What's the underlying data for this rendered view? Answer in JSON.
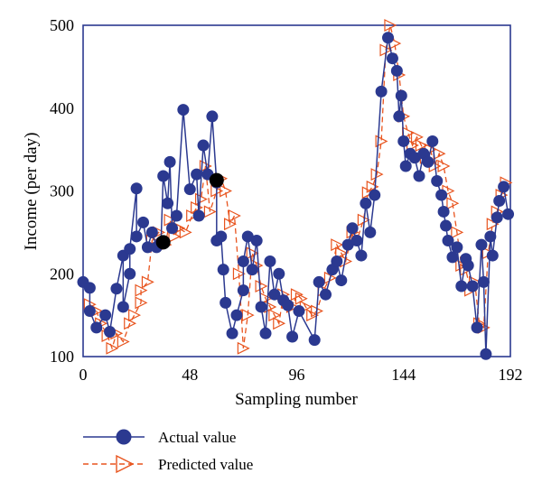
{
  "chart_data": {
    "type": "line",
    "xlabel": "Sampling number",
    "ylabel": "Income (per day)",
    "xlim": [
      0,
      192
    ],
    "ylim": [
      100,
      500
    ],
    "x_ticks": [
      0,
      48,
      96,
      144,
      192
    ],
    "y_ticks": [
      100,
      200,
      300,
      400,
      500
    ],
    "grid": false,
    "legend_position": "bottom-left",
    "series": [
      {
        "name": "Actual value",
        "color": "#2b3990",
        "marker": "circle",
        "line_style": "solid",
        "points": [
          [
            0,
            190
          ],
          [
            3,
            183
          ],
          [
            3,
            155
          ],
          [
            6,
            135
          ],
          [
            10,
            150
          ],
          [
            12,
            130
          ],
          [
            15,
            182
          ],
          [
            18,
            222
          ],
          [
            18,
            160
          ],
          [
            21,
            200
          ],
          [
            21,
            230
          ],
          [
            24,
            303
          ],
          [
            24,
            245
          ],
          [
            27,
            262
          ],
          [
            29,
            232
          ],
          [
            31,
            250
          ],
          [
            33,
            232
          ],
          [
            35,
            238
          ],
          [
            36,
            318
          ],
          [
            38,
            285
          ],
          [
            39,
            335
          ],
          [
            40,
            255
          ],
          [
            42,
            270
          ],
          [
            45,
            398
          ],
          [
            48,
            302
          ],
          [
            51,
            320
          ],
          [
            52,
            270
          ],
          [
            54,
            355
          ],
          [
            56,
            320
          ],
          [
            58,
            390
          ],
          [
            60,
            310
          ],
          [
            60,
            240
          ],
          [
            62,
            245
          ],
          [
            63,
            205
          ],
          [
            64,
            165
          ],
          [
            67,
            128
          ],
          [
            69,
            150
          ],
          [
            72,
            180
          ],
          [
            72,
            215
          ],
          [
            74,
            245
          ],
          [
            76,
            205
          ],
          [
            78,
            240
          ],
          [
            80,
            160
          ],
          [
            82,
            128
          ],
          [
            84,
            215
          ],
          [
            86,
            175
          ],
          [
            88,
            200
          ],
          [
            90,
            168
          ],
          [
            92,
            162
          ],
          [
            94,
            124
          ],
          [
            97,
            155
          ],
          [
            104,
            120
          ],
          [
            106,
            190
          ],
          [
            109,
            175
          ],
          [
            112,
            205
          ],
          [
            114,
            215
          ],
          [
            116,
            192
          ],
          [
            119,
            235
          ],
          [
            121,
            255
          ],
          [
            123,
            240
          ],
          [
            125,
            222
          ],
          [
            127,
            285
          ],
          [
            129,
            250
          ],
          [
            131,
            295
          ],
          [
            134,
            420
          ],
          [
            137,
            485
          ],
          [
            139,
            460
          ],
          [
            141,
            445
          ],
          [
            142,
            390
          ],
          [
            143,
            415
          ],
          [
            144,
            360
          ],
          [
            145,
            330
          ],
          [
            147,
            345
          ],
          [
            149,
            340
          ],
          [
            151,
            318
          ],
          [
            153,
            345
          ],
          [
            155,
            335
          ],
          [
            157,
            360
          ],
          [
            159,
            312
          ],
          [
            161,
            295
          ],
          [
            162,
            275
          ],
          [
            163,
            258
          ],
          [
            164,
            240
          ],
          [
            166,
            220
          ],
          [
            168,
            232
          ],
          [
            170,
            185
          ],
          [
            172,
            218
          ],
          [
            173,
            210
          ],
          [
            175,
            185
          ],
          [
            177,
            135
          ],
          [
            179,
            235
          ],
          [
            180,
            190
          ],
          [
            181,
            103
          ],
          [
            183,
            245
          ],
          [
            184,
            222
          ],
          [
            186,
            268
          ],
          [
            187,
            288
          ],
          [
            189,
            305
          ],
          [
            191,
            272
          ]
        ]
      },
      {
        "name": "Predicted value",
        "color": "#e8541e",
        "marker": "triangle-right",
        "line_style": "dashed",
        "points": [
          [
            3,
            163
          ],
          [
            6,
            155
          ],
          [
            8,
            140
          ],
          [
            11,
            125
          ],
          [
            13,
            110
          ],
          [
            15,
            128
          ],
          [
            18,
            118
          ],
          [
            21,
            140
          ],
          [
            23,
            150
          ],
          [
            26,
            165
          ],
          [
            26,
            180
          ],
          [
            29,
            190
          ],
          [
            31,
            240
          ],
          [
            34,
            250
          ],
          [
            37,
            235
          ],
          [
            39,
            265
          ],
          [
            41,
            245
          ],
          [
            43,
            255
          ],
          [
            46,
            250
          ],
          [
            49,
            270
          ],
          [
            51,
            280
          ],
          [
            53,
            290
          ],
          [
            55,
            330
          ],
          [
            57,
            275
          ],
          [
            60,
            300
          ],
          [
            62,
            315
          ],
          [
            64,
            300
          ],
          [
            66,
            260
          ],
          [
            68,
            270
          ],
          [
            70,
            200
          ],
          [
            72,
            110
          ],
          [
            74,
            150
          ],
          [
            76,
            225
          ],
          [
            78,
            210
          ],
          [
            80,
            185
          ],
          [
            82,
            170
          ],
          [
            84,
            160
          ],
          [
            86,
            150
          ],
          [
            88,
            140
          ],
          [
            90,
            175
          ],
          [
            92,
            165
          ],
          [
            94,
            160
          ],
          [
            96,
            175
          ],
          [
            98,
            170
          ],
          [
            100,
            160
          ],
          [
            103,
            150
          ],
          [
            105,
            155
          ],
          [
            108,
            180
          ],
          [
            111,
            195
          ],
          [
            114,
            235
          ],
          [
            116,
            225
          ],
          [
            118,
            215
          ],
          [
            121,
            250
          ],
          [
            123,
            240
          ],
          [
            126,
            265
          ],
          [
            128,
            298
          ],
          [
            130,
            305
          ],
          [
            132,
            320
          ],
          [
            134,
            360
          ],
          [
            136,
            470
          ],
          [
            138,
            500
          ],
          [
            140,
            478
          ],
          [
            142,
            440
          ],
          [
            144,
            390
          ],
          [
            146,
            370
          ],
          [
            148,
            355
          ],
          [
            150,
            365
          ],
          [
            152,
            355
          ],
          [
            154,
            340
          ],
          [
            156,
            350
          ],
          [
            158,
            330
          ],
          [
            160,
            345
          ],
          [
            162,
            330
          ],
          [
            164,
            300
          ],
          [
            166,
            285
          ],
          [
            168,
            250
          ],
          [
            170,
            210
          ],
          [
            172,
            205
          ],
          [
            174,
            180
          ],
          [
            176,
            190
          ],
          [
            178,
            140
          ],
          [
            180,
            135
          ],
          [
            182,
            225
          ],
          [
            184,
            260
          ],
          [
            186,
            275
          ],
          [
            188,
            295
          ],
          [
            190,
            310
          ]
        ]
      }
    ],
    "highlight_points": [
      {
        "x": 36,
        "y": 238,
        "color": "#000000"
      },
      {
        "x": 60,
        "y": 313,
        "color": "#000000"
      }
    ]
  }
}
